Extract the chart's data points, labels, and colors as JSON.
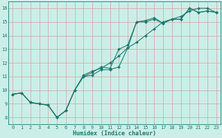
{
  "xlabel": "Humidex (Indice chaleur)",
  "bg_color": "#cceee8",
  "grid_color": "#d4a0a0",
  "line_color": "#1a7a6e",
  "xlim": [
    -0.5,
    23.5
  ],
  "ylim": [
    7.5,
    16.5
  ],
  "xticks": [
    0,
    1,
    2,
    3,
    4,
    5,
    6,
    7,
    8,
    9,
    10,
    11,
    12,
    13,
    14,
    15,
    16,
    17,
    18,
    19,
    20,
    21,
    22,
    23
  ],
  "yticks": [
    8,
    9,
    10,
    11,
    12,
    13,
    14,
    15,
    16
  ],
  "line1_x": [
    0,
    1,
    2,
    3,
    4,
    5,
    6,
    7,
    8,
    9,
    10,
    11,
    12,
    13,
    14,
    15,
    16,
    17,
    18,
    19,
    20,
    21,
    22,
    23
  ],
  "line1_y": [
    9.7,
    9.8,
    9.1,
    9.0,
    8.9,
    8.0,
    8.5,
    10.0,
    11.0,
    11.1,
    11.5,
    11.5,
    11.7,
    13.1,
    15.0,
    15.0,
    15.2,
    14.9,
    15.2,
    15.2,
    16.0,
    15.7,
    15.8,
    15.7
  ],
  "line2_x": [
    0,
    1,
    2,
    3,
    4,
    5,
    6,
    7,
    8,
    9,
    10,
    11,
    12,
    13,
    14,
    15,
    16,
    17,
    18,
    19,
    20,
    21,
    22,
    23
  ],
  "line2_y": [
    9.7,
    9.8,
    9.1,
    9.0,
    8.9,
    8.0,
    8.5,
    10.0,
    11.0,
    11.3,
    11.7,
    11.6,
    13.0,
    13.3,
    15.0,
    15.1,
    15.3,
    14.9,
    15.2,
    15.2,
    16.0,
    15.7,
    15.8,
    15.7
  ],
  "line3_x": [
    0,
    1,
    2,
    3,
    4,
    5,
    6,
    7,
    8,
    9,
    10,
    11,
    12,
    13,
    14,
    15,
    16,
    17,
    18,
    19,
    20,
    21,
    22,
    23
  ],
  "line3_y": [
    9.7,
    9.8,
    9.1,
    9.0,
    8.9,
    8.0,
    8.5,
    10.0,
    11.1,
    11.4,
    11.6,
    12.0,
    12.5,
    13.1,
    13.5,
    14.0,
    14.5,
    15.0,
    15.2,
    15.4,
    15.8,
    16.0,
    16.0,
    15.7
  ],
  "xlabel_fontsize": 6,
  "tick_fontsize": 5
}
